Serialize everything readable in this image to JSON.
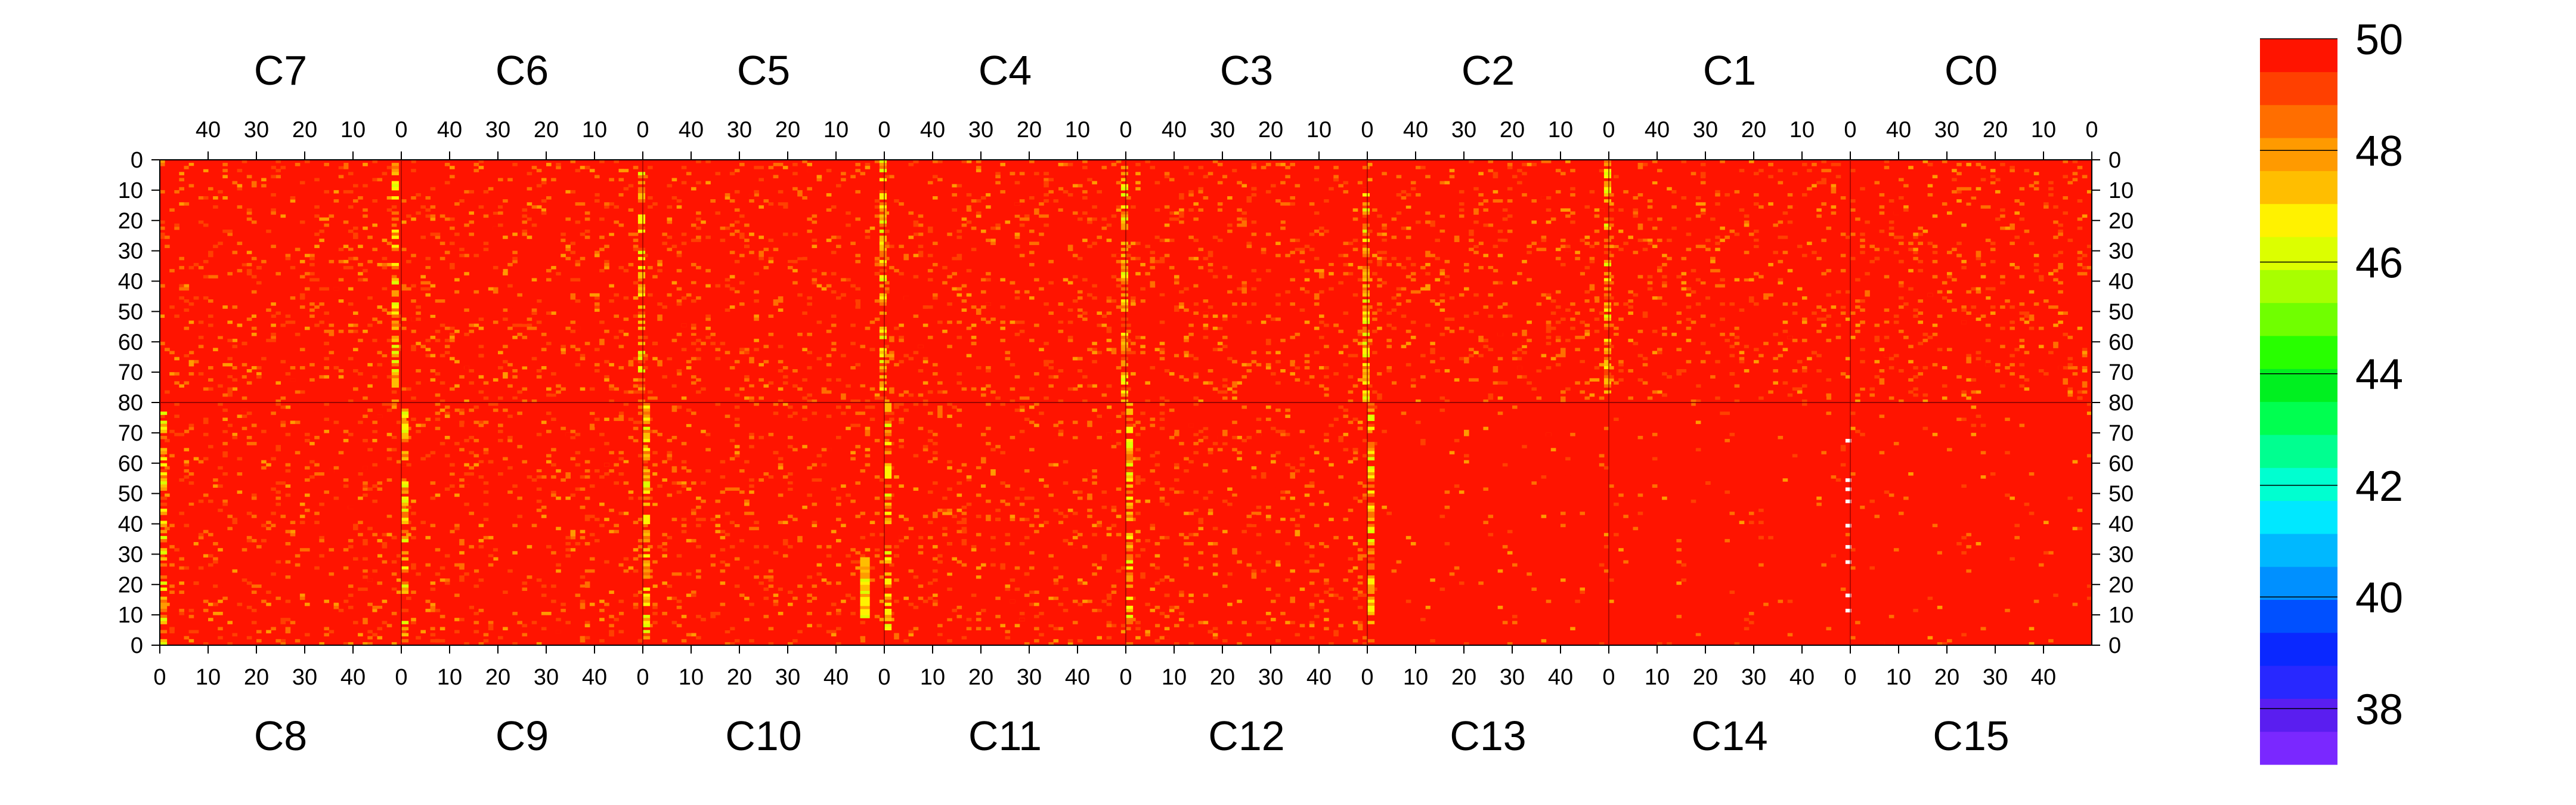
{
  "chart_data": {
    "type": "heatmap",
    "title": "",
    "xlabel": "",
    "ylabel": "",
    "top_panels": [
      "C7",
      "C6",
      "C5",
      "C4",
      "C3",
      "C2",
      "C1",
      "C0"
    ],
    "bottom_panels": [
      "C8",
      "C9",
      "C10",
      "C11",
      "C12",
      "C13",
      "C14",
      "C15"
    ],
    "x_ticks_top": [
      "40",
      "30",
      "20",
      "10",
      "0"
    ],
    "x_ticks_bottom": [
      "0",
      "10",
      "20",
      "30",
      "40"
    ],
    "top_x_direction": "descending",
    "bottom_x_direction": "ascending",
    "x_range": [
      0,
      50
    ],
    "y_ticks_upper": [
      "0",
      "10",
      "20",
      "30",
      "40",
      "50",
      "60",
      "70",
      "80"
    ],
    "y_ticks_lower": [
      "70",
      "60",
      "50",
      "40",
      "30",
      "20",
      "10",
      "0"
    ],
    "upper_half_y_range": [
      0,
      80
    ],
    "lower_half_y_range": [
      0,
      80
    ],
    "colorbar": {
      "min": 37,
      "max": 50,
      "ticks": [
        "38",
        "40",
        "42",
        "44",
        "46",
        "48",
        "50"
      ],
      "colors": [
        "#7a28ff",
        "#5a1ef0",
        "#2828ff",
        "#0a28ff",
        "#0050ff",
        "#0090ff",
        "#00b8ff",
        "#00e8ff",
        "#00ffd0",
        "#00ff90",
        "#00ff50",
        "#00f020",
        "#28ff00",
        "#70ff00",
        "#a8ff00",
        "#dcff00",
        "#fff200",
        "#ffbe00",
        "#ff9a00",
        "#ff6e00",
        "#ff4000",
        "#ff1400"
      ]
    },
    "background_value": 50,
    "cell_value_range": [
      37,
      50
    ],
    "grid": false,
    "legend": "colorbar-right",
    "notes_visible": "hot columns near panel edges (values 46-49), few white cells below scale"
  },
  "colors": {
    "saturated": "#ff1400",
    "background": "#ffffff",
    "axis": "#000000",
    "low_out_of_range": "#ffffff"
  }
}
